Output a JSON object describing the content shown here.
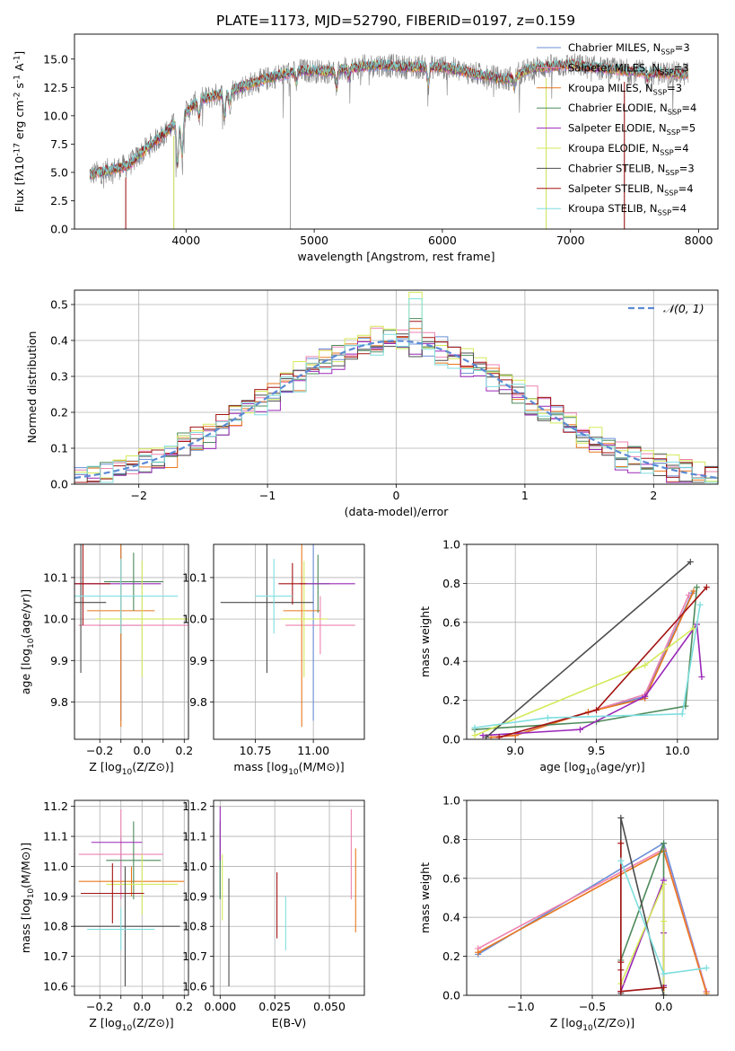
{
  "figure": {
    "title": "PLATE=1173, MJD=52790, FIBERID=0197, z=0.159"
  },
  "colors": {
    "Chabrier MILES": "#6b8fd6",
    "Salpeter MILES": "#ee82b0",
    "Kroupa MILES": "#e8781e",
    "Chabrier ELODIE": "#4d8a5a",
    "Salpeter ELODIE": "#9a27b8",
    "Kroupa ELODIE": "#d4ea5a",
    "Chabrier STELIB": "#4d4d4d",
    "Salpeter STELIB": "#a31313",
    "Kroupa STELIB": "#7fdede",
    "observed": "#808080",
    "normal": "#5b8ad4"
  },
  "legend_spectrum": [
    "Chabrier MILES, N$_{SSP}$=3",
    "Salpeter MILES, N$_{SSP}$=3",
    "Kroupa MILES, N$_{SSP}$=3",
    "Chabrier ELODIE, N$_{SSP}$=4",
    "Salpeter ELODIE, N$_{SSP}$=5",
    "Kroupa ELODIE, N$_{SSP}$=4",
    "Chabrier STELIB, N$_{SSP}$=3",
    "Salpeter STELIB, N$_{SSP}$=4",
    "Kroupa STELIB, N$_{SSP}$=4"
  ],
  "legend_hist": "𝒩(0, 1)",
  "chart_data": [
    {
      "id": "spectrum",
      "type": "line",
      "xlabel": "wavelength [Angstrom, rest frame]",
      "ylabel": "Flux [f$_\\lambda$10$^{-17}$ erg cm$^{-2}$ s$^{-1}$ A$^{-1}$]",
      "xlim": [
        3130,
        8150
      ],
      "ylim": [
        0,
        17.2
      ],
      "xticks": [
        4000,
        5000,
        6000,
        7000,
        8000
      ],
      "yticks": [
        0.0,
        2.5,
        5.0,
        7.5,
        10.0,
        12.5,
        15.0
      ],
      "grid": false,
      "legend": "lower-right",
      "continuum": {
        "x": [
          3250,
          3400,
          3550,
          3700,
          3850,
          4000,
          4100,
          4300,
          4500,
          4700,
          4900,
          5100,
          5300,
          5500,
          5700,
          6000,
          6300,
          6500,
          6700,
          7000,
          7300,
          7600,
          7900
        ],
        "y": [
          4.8,
          5.2,
          5.6,
          7.2,
          8.6,
          10.3,
          11.4,
          12.0,
          12.8,
          13.5,
          14.0,
          13.9,
          14.2,
          14.5,
          14.3,
          14.3,
          13.6,
          13.2,
          14.2,
          14.5,
          14.1,
          13.8,
          13.7
        ]
      },
      "absorption_dips": [
        {
          "x": 3934,
          "depth": 4.0
        },
        {
          "x": 3969,
          "depth": 3.5
        },
        {
          "x": 4102,
          "depth": 1.5
        },
        {
          "x": 4300,
          "depth": 2.0
        },
        {
          "x": 4340,
          "depth": 1.2
        },
        {
          "x": 4861,
          "depth": 1.0
        },
        {
          "x": 5175,
          "depth": 1.6
        },
        {
          "x": 5270,
          "depth": 0.8
        },
        {
          "x": 5890,
          "depth": 1.5
        },
        {
          "x": 6560,
          "depth": 1.0
        },
        {
          "x": 7600,
          "depth": 0.5
        }
      ],
      "observed_spikes": [
        {
          "x": 3530,
          "y": 0.0
        },
        {
          "x": 3905,
          "y": 0.0
        },
        {
          "x": 4815,
          "y": 0.0
        },
        {
          "x": 6810,
          "y": 0.0
        },
        {
          "x": 7420,
          "y": 0.0
        }
      ]
    },
    {
      "id": "residual_hist",
      "type": "bar",
      "xlabel": "(data-model)/error",
      "ylabel": "Normed distribution",
      "xlim": [
        -2.5,
        2.5
      ],
      "ylim": [
        0,
        0.54
      ],
      "xticks": [
        -2,
        -1,
        0,
        1,
        2
      ],
      "yticks": [
        0.0,
        0.1,
        0.2,
        0.3,
        0.4,
        0.5
      ],
      "grid": true,
      "legend": "top-right",
      "bin_width": 0.1,
      "bin_start": -2.5,
      "series_offsets": [
        0.0,
        0.012,
        -0.008,
        0.006,
        -0.015,
        0.01,
        -0.004,
        0.008,
        -0.01
      ],
      "peak_boost": [
        0.0,
        0.04,
        0.06,
        0.03,
        -0.02,
        0.12,
        -0.05,
        0.02,
        0.1
      ],
      "normal_curve": {
        "mean": 0,
        "sigma": 1
      }
    },
    {
      "id": "age_vs_Z",
      "type": "scatter",
      "xlabel": "Z [log$_{10}$(Z/Z$_\\odot$)]",
      "ylabel": "age  [log$_{10}$(age/yr)]",
      "xlim": [
        -0.32,
        0.22
      ],
      "ylim": [
        9.71,
        10.18
      ],
      "xticks": [
        -0.2,
        -0.1,
        0.0,
        0.1,
        0.2
      ],
      "xtick_labels": [
        "−0.2",
        "",
        "0.0",
        "",
        "0.2"
      ],
      "yticks": [
        9.8,
        9.9,
        10.0,
        10.1
      ],
      "grid": true,
      "points": [
        {
          "x": -0.1,
          "y": 9.985,
          "xerr": 0.1,
          "yerr": 0.23
        },
        {
          "x": -0.04,
          "y": 9.985,
          "xerr": 0.26,
          "yerr": 0.0
        },
        {
          "x": -0.1,
          "y": 10.02,
          "xerr": 0.16,
          "yerr": 0.28
        },
        {
          "x": -0.04,
          "y": 10.09,
          "xerr": 0.14,
          "yerr": 0.07
        },
        {
          "x": -0.13,
          "y": 10.085,
          "xerr": 0.22,
          "yerr": 0.0
        },
        {
          "x": 0.0,
          "y": 10.0,
          "xerr": 0.22,
          "yerr": 0.14
        },
        {
          "x": -0.29,
          "y": 10.04,
          "xerr": 0.12,
          "yerr": 0.17
        },
        {
          "x": -0.28,
          "y": 10.085,
          "xerr": 0.13,
          "yerr": 0.1
        },
        {
          "x": -0.1,
          "y": 10.055,
          "xerr": 0.27,
          "yerr": 0.09
        }
      ]
    },
    {
      "id": "age_vs_mass",
      "type": "scatter",
      "xlabel": "mass [log$_{10}$(M/M$_\\odot$)]",
      "ylabel": "",
      "xlim": [
        10.57,
        11.22
      ],
      "ylim": [
        9.71,
        10.18
      ],
      "xticks": [
        10.75,
        11.0
      ],
      "xtick_labels": [
        "10.75",
        "11.00"
      ],
      "yticks": [
        9.8,
        9.9,
        10.0,
        10.1
      ],
      "grid": true,
      "points": [
        {
          "x": 11.0,
          "y": 9.985,
          "xerr": 0.0,
          "yerr": 0.23
        },
        {
          "x": 11.03,
          "y": 9.985,
          "xerr": 0.15,
          "yerr": 0.07
        },
        {
          "x": 10.95,
          "y": 10.02,
          "xerr": 0.08,
          "yerr": 0.28
        },
        {
          "x": 11.02,
          "y": 10.085,
          "xerr": 0.05,
          "yerr": 0.07
        },
        {
          "x": 11.06,
          "y": 10.085,
          "xerr": 0.12,
          "yerr": 0.0
        },
        {
          "x": 10.96,
          "y": 10.0,
          "xerr": 0.1,
          "yerr": 0.14
        },
        {
          "x": 10.8,
          "y": 10.04,
          "xerr": 0.2,
          "yerr": 0.17
        },
        {
          "x": 10.91,
          "y": 10.085,
          "xerr": 0.06,
          "yerr": 0.05
        },
        {
          "x": 10.83,
          "y": 10.055,
          "xerr": 0.08,
          "yerr": 0.09
        }
      ]
    },
    {
      "id": "massweight_vs_age",
      "type": "line",
      "xlabel": "age  [log$_{10}$(age/yr)]",
      "ylabel": "mass weight",
      "xlim": [
        8.7,
        10.25
      ],
      "ylim": [
        0,
        1.0
      ],
      "xticks": [
        9.0,
        9.5,
        10.0
      ],
      "yticks": [
        0.0,
        0.2,
        0.4,
        0.6,
        0.8,
        1.0
      ],
      "grid": true,
      "series": [
        {
          "x": [
            8.85,
            9.0,
            9.45,
            9.8,
            10.09
          ],
          "y": [
            0.01,
            0.02,
            0.14,
            0.22,
            0.75
          ]
        },
        {
          "x": [
            8.85,
            9.0,
            9.45,
            9.8,
            10.07
          ],
          "y": [
            0.01,
            0.02,
            0.14,
            0.23,
            0.74
          ]
        },
        {
          "x": [
            8.85,
            9.0,
            9.45,
            9.8,
            10.1
          ],
          "y": [
            0.01,
            0.02,
            0.14,
            0.21,
            0.76
          ]
        },
        {
          "x": [
            8.75,
            9.5,
            10.05,
            10.12
          ],
          "y": [
            0.05,
            0.09,
            0.17,
            0.78
          ]
        },
        {
          "x": [
            8.8,
            9.4,
            9.8,
            10.12,
            10.15
          ],
          "y": [
            0.02,
            0.05,
            0.22,
            0.59,
            0.32
          ]
        },
        {
          "x": [
            8.75,
            9.8,
            10.1
          ],
          "y": [
            0.02,
            0.38,
            0.57
          ]
        },
        {
          "x": [
            8.82,
            10.08
          ],
          "y": [
            0.01,
            0.91
          ]
        },
        {
          "x": [
            8.9,
            9.5,
            10.18
          ],
          "y": [
            0.01,
            0.15,
            0.78
          ]
        },
        {
          "x": [
            8.75,
            9.2,
            10.03,
            10.14
          ],
          "y": [
            0.06,
            0.11,
            0.13,
            0.69
          ]
        }
      ]
    },
    {
      "id": "mass_vs_Z",
      "type": "scatter",
      "xlabel": "Z [log$_{10}$(Z/Z$_\\odot$)]",
      "ylabel": "mass [log$_{10}$(M/M$_\\odot$)]",
      "xlim": [
        -0.32,
        0.22
      ],
      "ylim": [
        10.57,
        11.22
      ],
      "xticks": [
        -0.2,
        -0.1,
        0.0,
        0.1,
        0.2
      ],
      "xtick_labels": [
        "−0.2",
        "",
        "0.0",
        "",
        "0.2"
      ],
      "yticks": [
        10.6,
        10.7,
        10.8,
        10.9,
        11.0,
        11.1,
        11.2
      ],
      "grid": true,
      "points": [
        {
          "x": -0.1,
          "y": 10.995,
          "xerr": 0.0,
          "yerr": 0.1
        },
        {
          "x": -0.1,
          "y": 11.04,
          "xerr": 0.2,
          "yerr": 0.15
        },
        {
          "x": -0.05,
          "y": 10.95,
          "xerr": 0.25,
          "yerr": 0.05
        },
        {
          "x": -0.04,
          "y": 11.02,
          "xerr": 0.13,
          "yerr": 0.13
        },
        {
          "x": -0.12,
          "y": 11.08,
          "xerr": 0.12,
          "yerr": 0.0
        },
        {
          "x": 0.0,
          "y": 10.94,
          "xerr": 0.17,
          "yerr": 0.1
        },
        {
          "x": -0.08,
          "y": 10.8,
          "xerr": 0.26,
          "yerr": 0.2
        },
        {
          "x": -0.14,
          "y": 10.91,
          "xerr": 0.15,
          "yerr": 0.1
        },
        {
          "x": -0.1,
          "y": 10.79,
          "xerr": 0.16,
          "yerr": 0.07
        }
      ]
    },
    {
      "id": "mass_vs_ebv",
      "type": "scatter",
      "xlabel": "E(B-V)",
      "ylabel": "",
      "xlim": [
        -0.003,
        0.066
      ],
      "ylim": [
        10.57,
        11.22
      ],
      "xticks": [
        0.0,
        0.025,
        0.05
      ],
      "xtick_labels": [
        "0.000",
        "0.025",
        "0.050"
      ],
      "yticks": [
        10.6,
        10.7,
        10.8,
        10.9,
        11.0,
        11.1,
        11.2
      ],
      "grid": true,
      "points": [
        {
          "x": 0.0,
          "y": 10.995,
          "xerr": 0.0,
          "yerr": 0.1
        },
        {
          "x": 0.06,
          "y": 11.04,
          "xerr": 0.0,
          "yerr": 0.15
        },
        {
          "x": 0.062,
          "y": 10.92,
          "xerr": 0.0,
          "yerr": 0.14
        },
        {
          "x": 0.0,
          "y": 11.02,
          "xerr": 0.0,
          "yerr": 0.13
        },
        {
          "x": 0.0,
          "y": 11.11,
          "xerr": 0.0,
          "yerr": 0.09
        },
        {
          "x": 0.001,
          "y": 10.93,
          "xerr": 0.0,
          "yerr": 0.11
        },
        {
          "x": 0.004,
          "y": 10.78,
          "xerr": 0.0,
          "yerr": 0.18
        },
        {
          "x": 0.026,
          "y": 10.87,
          "xerr": 0.0,
          "yerr": 0.11
        },
        {
          "x": 0.03,
          "y": 10.81,
          "xerr": 0.0,
          "yerr": 0.09
        }
      ]
    },
    {
      "id": "massweight_vs_Z",
      "type": "line",
      "xlabel": "Z [log$_{10}$(Z/Z$_\\odot$)]",
      "ylabel": "mass weight",
      "xlim": [
        -1.38,
        0.38
      ],
      "ylim": [
        0,
        1.0
      ],
      "xticks": [
        -1.0,
        -0.5,
        0.0
      ],
      "yticks": [
        0.0,
        0.2,
        0.4,
        0.6,
        0.8,
        1.0
      ],
      "grid": true,
      "series": [
        {
          "x": [
            -1.3,
            0.0,
            0.3
          ],
          "y": [
            0.21,
            0.78,
            0.02
          ]
        },
        {
          "x": [
            -1.3,
            0.0,
            0.3
          ],
          "y": [
            0.24,
            0.75,
            0.02
          ]
        },
        {
          "x": [
            -1.3,
            0.0,
            0.3
          ],
          "y": [
            0.22,
            0.74,
            0.01
          ]
        },
        {
          "x": [
            -0.3,
            0.0,
            0.0,
            0.0
          ],
          "y": [
            0.18,
            0.78,
            0.05,
            0.0
          ]
        },
        {
          "x": [
            -0.3,
            0.0,
            0.0,
            0.0,
            0.0
          ],
          "y": [
            0.02,
            0.59,
            0.32,
            0.05,
            0.0
          ]
        },
        {
          "x": [
            -0.3,
            0.0,
            0.0,
            0.0
          ],
          "y": [
            0.06,
            0.57,
            0.38,
            0.0
          ]
        },
        {
          "x": [
            -0.3,
            -0.3,
            0.0
          ],
          "y": [
            0.01,
            0.91,
            0.0
          ]
        },
        {
          "x": [
            -0.3,
            -0.3,
            -0.3,
            -0.3,
            0.0
          ],
          "y": [
            0.78,
            0.17,
            0.13,
            0.02,
            0.04
          ]
        },
        {
          "x": [
            -0.3,
            0.0,
            0.3
          ],
          "y": [
            0.69,
            0.11,
            0.14
          ]
        }
      ]
    }
  ]
}
